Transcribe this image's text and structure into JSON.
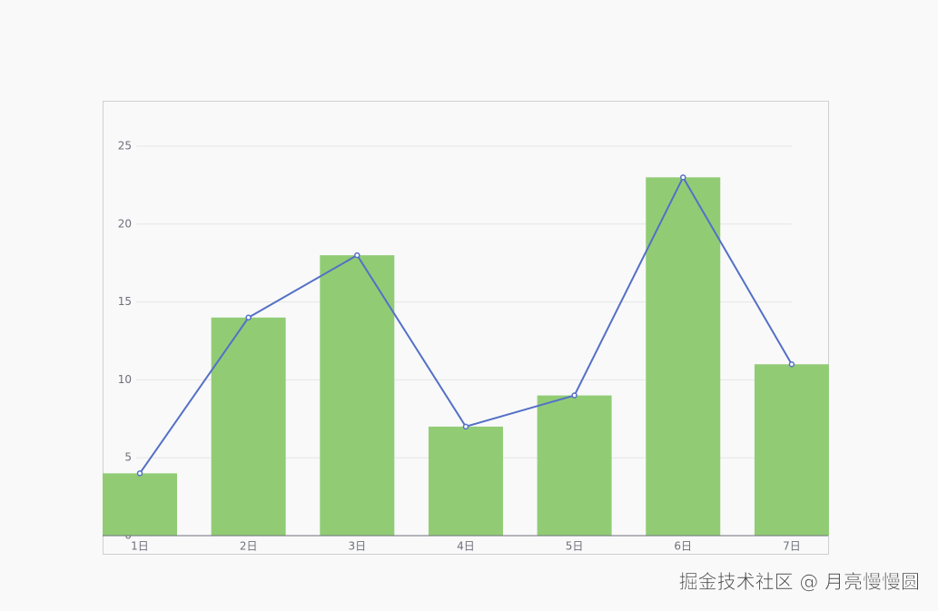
{
  "chart_data": {
    "type": "bar",
    "categories": [
      "1日",
      "2日",
      "3日",
      "4日",
      "5日",
      "6日",
      "7日"
    ],
    "series": [
      {
        "type": "bar",
        "color": "#91cc75",
        "values": [
          4,
          14,
          18,
          7,
          9,
          23,
          11
        ]
      },
      {
        "type": "line",
        "color": "#5470c6",
        "values": [
          4,
          14,
          18,
          7,
          9,
          23,
          11
        ]
      }
    ],
    "ylim": [
      0,
      25
    ],
    "yticks": [
      0,
      5,
      10,
      15,
      20,
      25
    ],
    "grid": true
  },
  "watermark": "掘金技术社区 @ 月亮慢慢圆"
}
